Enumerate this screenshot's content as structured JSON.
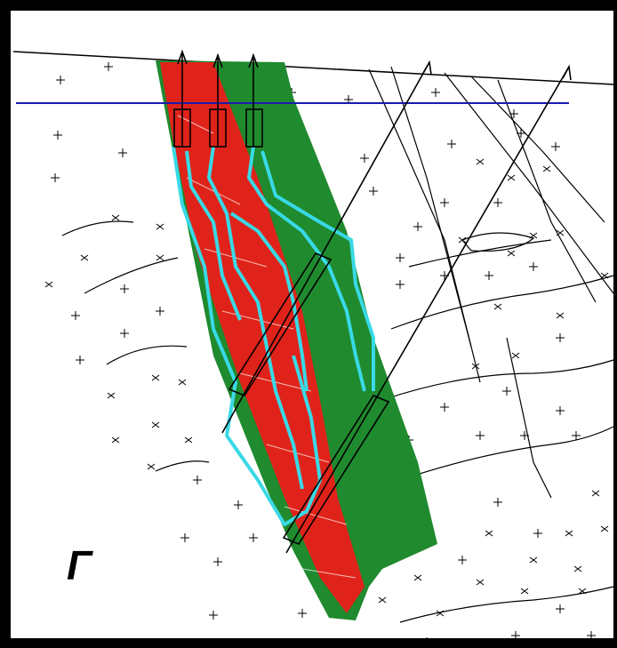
{
  "label": "Г"
}
